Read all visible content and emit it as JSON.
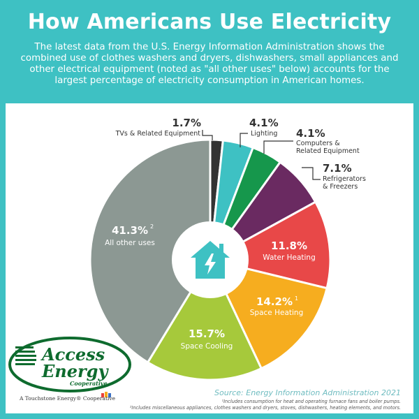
{
  "header": {
    "title": "How Americans Use Electricity",
    "subtitle": "The latest data from the U.S. Energy Information Administration shows the combined use of clothes washers and dryers, dishwashers, small appliances and other electrical equipment (noted as \"all other uses\" below) accounts for the largest percentage of electricity consumption in American homes."
  },
  "chart_data": {
    "type": "pie",
    "slices": [
      {
        "label": "TVs & Related Equipment",
        "value": 1.7,
        "display": "1.7%",
        "color": "#333333"
      },
      {
        "label": "Lighting",
        "value": 4.1,
        "display": "4.1%",
        "color": "#3ec1c3"
      },
      {
        "label": "Computers & Related Equipment",
        "value": 4.1,
        "display": "4.1%",
        "color": "#16974c"
      },
      {
        "label": "Refrigerators & Freezers",
        "value": 7.1,
        "display": "7.1%",
        "color": "#6a2a61"
      },
      {
        "label": "Water Heating",
        "value": 11.8,
        "display": "11.8%",
        "color": "#e84848"
      },
      {
        "label": "Space Heating",
        "value": 14.2,
        "display": "14.2%",
        "note": "1",
        "color": "#f6ad1f"
      },
      {
        "label": "Space Cooling",
        "value": 15.7,
        "display": "15.7%",
        "color": "#a6c93b"
      },
      {
        "label": "All other uses",
        "value": 41.3,
        "display": "41.3%",
        "note": "2",
        "color": "#8c9893"
      }
    ]
  },
  "outside_labels": {
    "tvs": {
      "pct": "1.7%",
      "name": "TVs & Related Equipment"
    },
    "lighting": {
      "pct": "4.1%",
      "name": "Lighting"
    },
    "computers": {
      "pct": "4.1%",
      "line1": "Computers &",
      "line2": "Related Equipment"
    },
    "refrigerators": {
      "pct": "7.1%",
      "line1": "Refrigerators",
      "line2": "& Freezers"
    }
  },
  "inside_labels": {
    "water": {
      "pct": "11.8%",
      "name": "Water Heating"
    },
    "heating": {
      "pct": "14.2%",
      "sup": "1",
      "name": "Space Heating"
    },
    "cooling": {
      "pct": "15.7%",
      "name": "Space Cooling"
    },
    "other": {
      "pct": "41.3%",
      "sup": "2",
      "name": "All other uses"
    }
  },
  "source": "Source: Energy Information Administration 2021",
  "footnotes": {
    "fn1": "¹Includes consumption for heat and operating furnace fans and boiler pumps.",
    "fn2": "²Includes miscellaneous appliances, clothes washers and dryers, stoves, dishwashers, heating elements, and motors."
  },
  "logo": {
    "line1": "Access",
    "line2": "Energy",
    "line3": "Cooperative",
    "tagline": "A Touchstone Energy® Cooperative"
  },
  "colors": {
    "background": "#3ec1c3",
    "logo_green": "#0e6b2e"
  },
  "icons": {
    "center": "house-lightning-icon"
  }
}
